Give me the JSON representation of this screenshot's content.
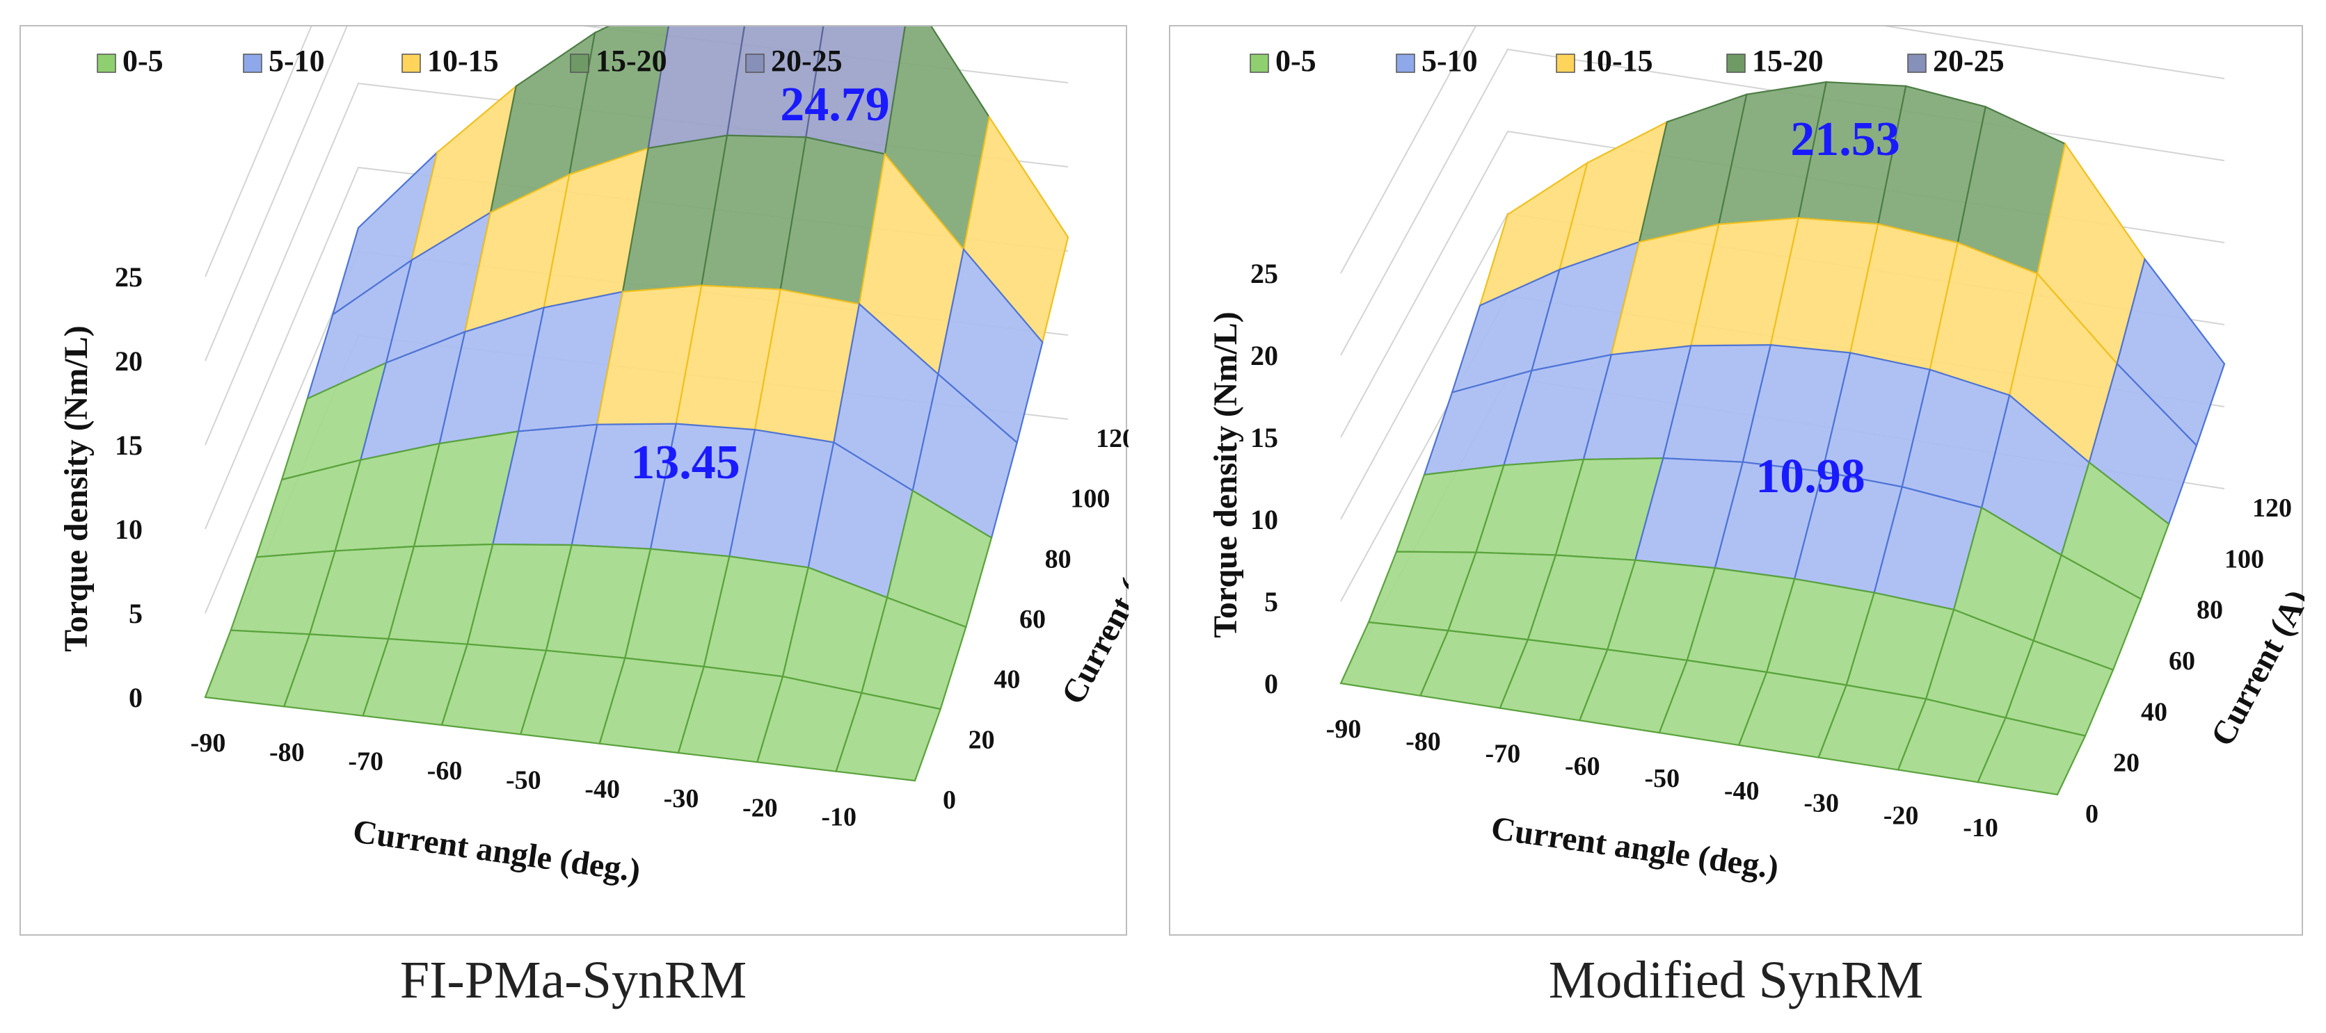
{
  "legend": [
    {
      "label": "0-5",
      "color": "#8fcf70"
    },
    {
      "label": "5-10",
      "color": "#8ea8ea"
    },
    {
      "label": "10-15",
      "color": "#ffd45a"
    },
    {
      "label": "15-20",
      "color": "#6f9a66"
    },
    {
      "label": "20-25",
      "color": "#8790b8"
    }
  ],
  "chart_data": [
    {
      "type": "surface3d",
      "caption": "FI-PMa-SynRM",
      "zlabel": "Torque density (Nm/L)",
      "xlabel": "Current angle (deg.)",
      "ylabel": "Current (A)",
      "x_ticks": [
        "-90",
        "-80",
        "-70",
        "-60",
        "-50",
        "-40",
        "-30",
        "-20",
        "-10"
      ],
      "y_ticks": [
        "0",
        "20",
        "40",
        "60",
        "80",
        "100",
        "120"
      ],
      "z_ticks": [
        "0",
        "5",
        "10",
        "15",
        "20",
        "25"
      ],
      "zlim": [
        0,
        25
      ],
      "peak_value": 24.79,
      "peak_label": "24.79",
      "mid_label": "13.45",
      "current_angle": [
        -90,
        -80,
        -70,
        -60,
        -50,
        -40,
        -30,
        -20,
        -10,
        0
      ],
      "current": [
        0,
        20,
        40,
        60,
        80,
        100,
        120
      ],
      "peak_angle": -30,
      "mid_point": {
        "current_angle": -40,
        "current": 60,
        "value": 13.45
      }
    },
    {
      "type": "surface3d",
      "caption": "Modified SynRM",
      "zlabel": "Torque density (Nm/L)",
      "xlabel": "Current angle (deg.)",
      "ylabel": "Current (A)",
      "x_ticks": [
        "-90",
        "-80",
        "-70",
        "-60",
        "-50",
        "-40",
        "-30",
        "-20",
        "-10"
      ],
      "y_ticks": [
        "0",
        "20",
        "40",
        "60",
        "80",
        "100",
        "120"
      ],
      "z_ticks": [
        "0",
        "5",
        "10",
        "15",
        "20",
        "25"
      ],
      "zlim": [
        0,
        25
      ],
      "peak_value": 21.53,
      "peak_label": "21.53",
      "mid_label": "10.98",
      "current_angle": [
        -90,
        -80,
        -70,
        -60,
        -50,
        -40,
        -30,
        -20,
        -10,
        0
      ],
      "current": [
        0,
        20,
        40,
        60,
        80,
        100,
        120
      ],
      "peak_angle": -40,
      "mid_point": {
        "current_angle": -40,
        "current": 60,
        "value": 10.98
      }
    }
  ]
}
